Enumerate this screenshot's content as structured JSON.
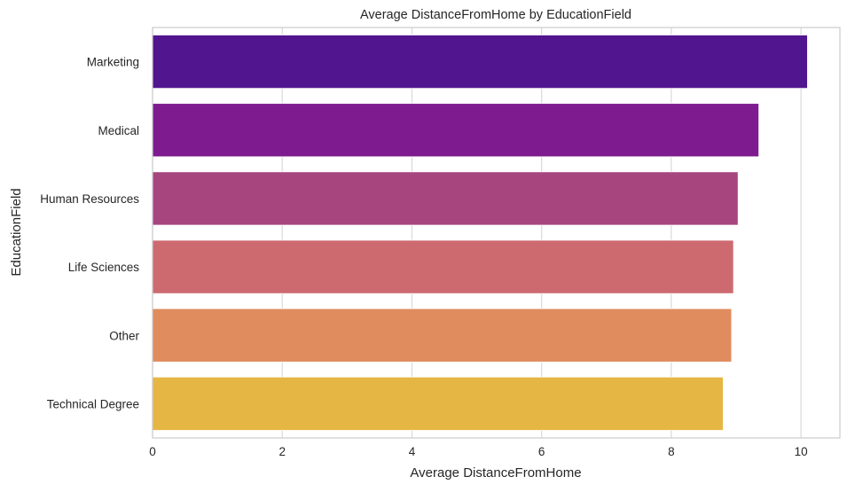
{
  "chart_data": {
    "type": "bar",
    "orientation": "horizontal",
    "title": "Average DistanceFromHome by EducationField",
    "xlabel": "Average DistanceFromHome",
    "ylabel": "EducationField",
    "categories": [
      "Marketing",
      "Medical",
      "Human Resources",
      "Life Sciences",
      "Other",
      "Technical Degree"
    ],
    "values": [
      10.1,
      9.35,
      9.03,
      8.96,
      8.93,
      8.8
    ],
    "colors": [
      "#51158f",
      "#7e1c8f",
      "#a7457f",
      "#cd6a70",
      "#e08c5e",
      "#e5b643"
    ],
    "xlim": [
      0,
      10.6
    ],
    "xticks": [
      0,
      2,
      4,
      6,
      8,
      10
    ],
    "grid": true,
    "legend": "none"
  }
}
